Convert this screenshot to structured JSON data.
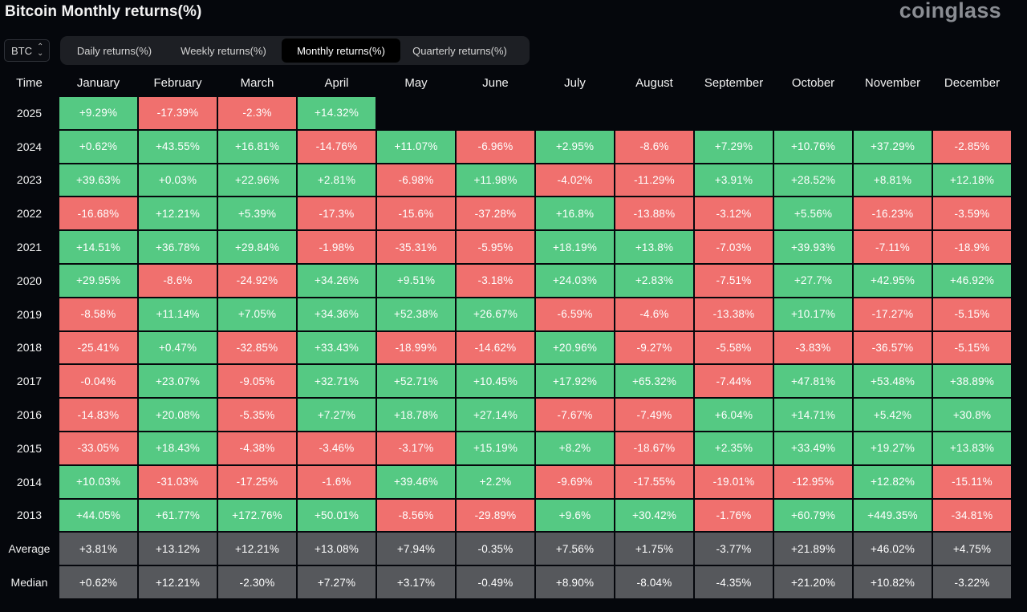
{
  "title": "Bitcoin Monthly returns(%)",
  "brand": "coinglass",
  "asset_select": {
    "value": "BTC",
    "icon": "up-down-chevron-icon"
  },
  "tabs": [
    {
      "label": "Daily returns(%)",
      "active": false
    },
    {
      "label": "Weekly returns(%)",
      "active": false
    },
    {
      "label": "Monthly returns(%)",
      "active": true
    },
    {
      "label": "Quarterly returns(%)",
      "active": false
    }
  ],
  "colors": {
    "positive": "#55c983",
    "negative": "#f0706e",
    "summary": "#56585c",
    "background": "#05070c"
  },
  "chart_data": {
    "type": "heatmap",
    "title": "Bitcoin Monthly returns(%)",
    "row_header_label": "Time",
    "columns": [
      "January",
      "February",
      "March",
      "April",
      "May",
      "June",
      "July",
      "August",
      "September",
      "October",
      "November",
      "December"
    ],
    "rows": [
      {
        "label": "2025",
        "values": [
          "+9.29%",
          "-17.39%",
          "-2.3%",
          "+14.32%"
        ]
      },
      {
        "label": "2024",
        "values": [
          "+0.62%",
          "+43.55%",
          "+16.81%",
          "-14.76%",
          "+11.07%",
          "-6.96%",
          "+2.95%",
          "-8.6%",
          "+7.29%",
          "+10.76%",
          "+37.29%",
          "-2.85%"
        ]
      },
      {
        "label": "2023",
        "values": [
          "+39.63%",
          "+0.03%",
          "+22.96%",
          "+2.81%",
          "-6.98%",
          "+11.98%",
          "-4.02%",
          "-11.29%",
          "+3.91%",
          "+28.52%",
          "+8.81%",
          "+12.18%"
        ]
      },
      {
        "label": "2022",
        "values": [
          "-16.68%",
          "+12.21%",
          "+5.39%",
          "-17.3%",
          "-15.6%",
          "-37.28%",
          "+16.8%",
          "-13.88%",
          "-3.12%",
          "+5.56%",
          "-16.23%",
          "-3.59%"
        ]
      },
      {
        "label": "2021",
        "values": [
          "+14.51%",
          "+36.78%",
          "+29.84%",
          "-1.98%",
          "-35.31%",
          "-5.95%",
          "+18.19%",
          "+13.8%",
          "-7.03%",
          "+39.93%",
          "-7.11%",
          "-18.9%"
        ]
      },
      {
        "label": "2020",
        "values": [
          "+29.95%",
          "-8.6%",
          "-24.92%",
          "+34.26%",
          "+9.51%",
          "-3.18%",
          "+24.03%",
          "+2.83%",
          "-7.51%",
          "+27.7%",
          "+42.95%",
          "+46.92%"
        ]
      },
      {
        "label": "2019",
        "values": [
          "-8.58%",
          "+11.14%",
          "+7.05%",
          "+34.36%",
          "+52.38%",
          "+26.67%",
          "-6.59%",
          "-4.6%",
          "-13.38%",
          "+10.17%",
          "-17.27%",
          "-5.15%"
        ]
      },
      {
        "label": "2018",
        "values": [
          "-25.41%",
          "+0.47%",
          "-32.85%",
          "+33.43%",
          "-18.99%",
          "-14.62%",
          "+20.96%",
          "-9.27%",
          "-5.58%",
          "-3.83%",
          "-36.57%",
          "-5.15%"
        ]
      },
      {
        "label": "2017",
        "values": [
          "-0.04%",
          "+23.07%",
          "-9.05%",
          "+32.71%",
          "+52.71%",
          "+10.45%",
          "+17.92%",
          "+65.32%",
          "-7.44%",
          "+47.81%",
          "+53.48%",
          "+38.89%"
        ]
      },
      {
        "label": "2016",
        "values": [
          "-14.83%",
          "+20.08%",
          "-5.35%",
          "+7.27%",
          "+18.78%",
          "+27.14%",
          "-7.67%",
          "-7.49%",
          "+6.04%",
          "+14.71%",
          "+5.42%",
          "+30.8%"
        ]
      },
      {
        "label": "2015",
        "values": [
          "-33.05%",
          "+18.43%",
          "-4.38%",
          "-3.46%",
          "-3.17%",
          "+15.19%",
          "+8.2%",
          "-18.67%",
          "+2.35%",
          "+33.49%",
          "+19.27%",
          "+13.83%"
        ]
      },
      {
        "label": "2014",
        "values": [
          "+10.03%",
          "-31.03%",
          "-17.25%",
          "-1.6%",
          "+39.46%",
          "+2.2%",
          "-9.69%",
          "-17.55%",
          "-19.01%",
          "-12.95%",
          "+12.82%",
          "-15.11%"
        ]
      },
      {
        "label": "2013",
        "values": [
          "+44.05%",
          "+61.77%",
          "+172.76%",
          "+50.01%",
          "-8.56%",
          "-29.89%",
          "+9.6%",
          "+30.42%",
          "-1.76%",
          "+60.79%",
          "+449.35%",
          "-34.81%"
        ]
      },
      {
        "label": "Average",
        "summary": true,
        "values": [
          "+3.81%",
          "+13.12%",
          "+12.21%",
          "+13.08%",
          "+7.94%",
          "-0.35%",
          "+7.56%",
          "+1.75%",
          "-3.77%",
          "+21.89%",
          "+46.02%",
          "+4.75%"
        ]
      },
      {
        "label": "Median",
        "summary": true,
        "values": [
          "+0.62%",
          "+12.21%",
          "-2.30%",
          "+7.27%",
          "+3.17%",
          "-0.49%",
          "+8.90%",
          "-8.04%",
          "-4.35%",
          "+21.20%",
          "+10.82%",
          "-3.22%"
        ]
      }
    ]
  }
}
